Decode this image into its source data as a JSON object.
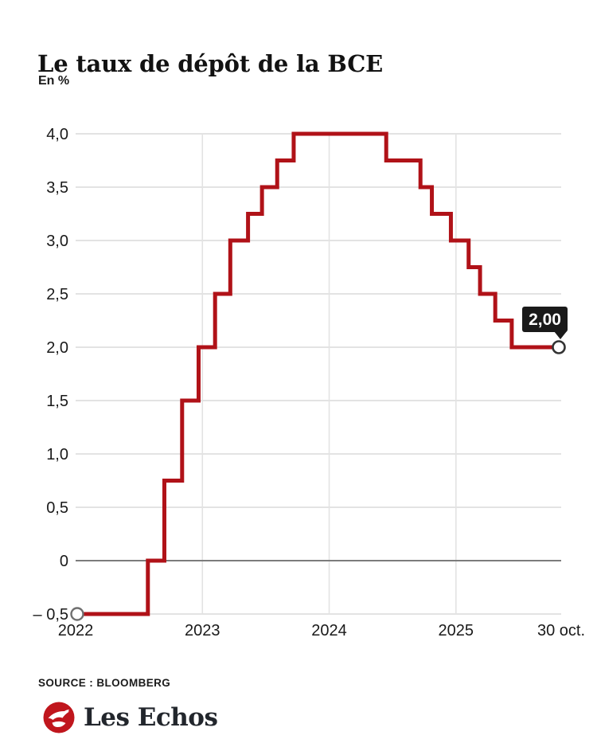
{
  "header": {
    "title": "Le taux de dépôt de la BCE",
    "unit": "En %"
  },
  "chart_data": {
    "type": "line",
    "style": "step-after",
    "title": "Le taux de dépôt de la BCE",
    "ylabel": "En %",
    "xlim": [
      2022.0,
      2025.83
    ],
    "ylim": [
      -0.5,
      4.0
    ],
    "grid": true,
    "series": [
      {
        "name": "Taux de dépôt de la BCE (%)",
        "points": [
          {
            "x": 2022.0,
            "y": -0.5
          },
          {
            "x": 2022.57,
            "y": 0.0
          },
          {
            "x": 2022.7,
            "y": 0.75
          },
          {
            "x": 2022.84,
            "y": 1.5
          },
          {
            "x": 2022.97,
            "y": 2.0
          },
          {
            "x": 2023.1,
            "y": 2.5
          },
          {
            "x": 2023.22,
            "y": 3.0
          },
          {
            "x": 2023.36,
            "y": 3.25
          },
          {
            "x": 2023.47,
            "y": 3.5
          },
          {
            "x": 2023.59,
            "y": 3.75
          },
          {
            "x": 2023.72,
            "y": 4.0
          },
          {
            "x": 2024.45,
            "y": 3.75
          },
          {
            "x": 2024.72,
            "y": 3.5
          },
          {
            "x": 2024.81,
            "y": 3.25
          },
          {
            "x": 2024.96,
            "y": 3.0
          },
          {
            "x": 2025.1,
            "y": 2.75
          },
          {
            "x": 2025.19,
            "y": 2.5
          },
          {
            "x": 2025.31,
            "y": 2.25
          },
          {
            "x": 2025.44,
            "y": 2.0
          },
          {
            "x": 2025.83,
            "y": 2.0
          }
        ]
      }
    ],
    "x_ticks": [
      {
        "label": "2022",
        "x": 2022.0,
        "gridline": false
      },
      {
        "label": "2023",
        "x": 2023.0,
        "gridline": true
      },
      {
        "label": "2024",
        "x": 2024.0,
        "gridline": true
      },
      {
        "label": "2025",
        "x": 2025.0,
        "gridline": true
      },
      {
        "label": "30 oct.",
        "x": 2025.83,
        "gridline": false
      }
    ],
    "y_ticks": [
      {
        "label": "4,0",
        "value": 4.0
      },
      {
        "label": "3,5",
        "value": 3.5
      },
      {
        "label": "3,0",
        "value": 3.0
      },
      {
        "label": "2,5",
        "value": 2.5
      },
      {
        "label": "2,0",
        "value": 2.0
      },
      {
        "label": "1,5",
        "value": 1.5
      },
      {
        "label": "1,0",
        "value": 1.0
      },
      {
        "label": "0,5",
        "value": 0.5
      },
      {
        "label": "0",
        "value": 0
      },
      {
        "label": "– 0,5",
        "value": -0.5
      }
    ],
    "end_label": "2,00",
    "legend_position": "none"
  },
  "colors": {
    "line": "#b01218",
    "grid": "#e3e3e3",
    "zero_line": "#7c7c7c",
    "tick_text": "#1a1a1a",
    "badge_bg": "#1a1a1a",
    "badge_text": "#ffffff",
    "marker_fill": "#ffffff",
    "start_marker_stroke": "#6f6f6f",
    "end_marker_stroke": "#333333",
    "logo_red": "#c0161d"
  },
  "footer": {
    "source": "SOURCE : BLOOMBERG",
    "logo_text": "Les Echos",
    "logo_icon": "lesechos-rooster-icon"
  }
}
